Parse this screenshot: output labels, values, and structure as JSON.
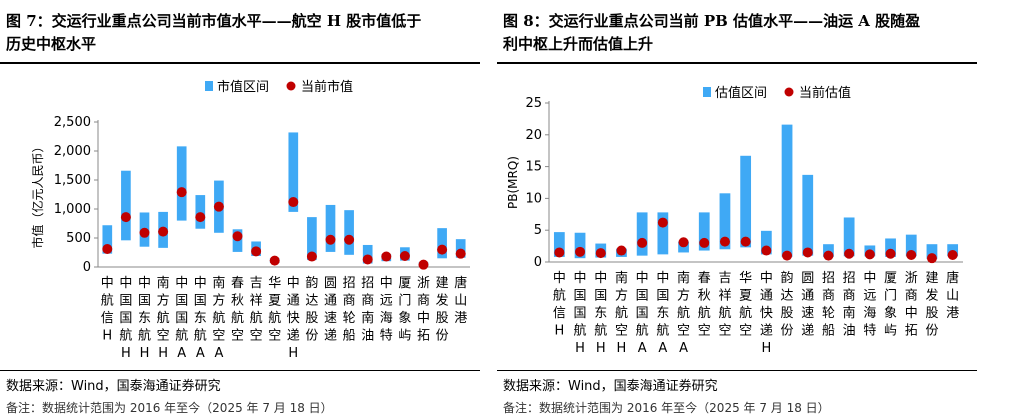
{
  "left": {
    "title_line1": "图 7：交运行业重点公司当前市值水平——航空 H 股市值低于",
    "title_line2": "历史中枢水平",
    "source": "数据来源：Wind，国泰海通证券研究",
    "note": "备注：数据统计范围为 2016 年至今（2025 年 7 月 18 日）"
  },
  "right": {
    "title_line1": "图 8：交运行业重点公司当前 PB 估值水平——油运 A 股随盈",
    "title_line2": "利中枢上升而估值上升",
    "source": "数据来源：Wind，国泰海通证券研究",
    "note": "备注：数据统计范围为 2016 年至今（2025 年 7 月 18 日）"
  },
  "chart_data": [
    {
      "type": "bar",
      "subtype": "range-bar-with-points",
      "ylabel": "市值（亿元人民币）",
      "ylim": [
        0,
        2500
      ],
      "yticks": [
        "0",
        "500",
        "1,000",
        "1,500",
        "2,000",
        "2,500"
      ],
      "ytick_values": [
        0,
        500,
        1000,
        1500,
        2000,
        2500
      ],
      "legend": [
        "市值区间",
        "当前市值"
      ],
      "legend_position": "top-center",
      "colors": {
        "range": "#3fa9f5",
        "point": "#c00000"
      },
      "categories": [
        "中航信H",
        "中国国航H",
        "中国东航H",
        "南方航空H",
        "中国国航A",
        "中国东航A",
        "南方航空A",
        "春秋航空",
        "吉祥航空",
        "华夏航空",
        "中通快递H",
        "韵达股份",
        "圆通速递",
        "招商轮船",
        "招商南油",
        "中远海特",
        "厦门象屿",
        "浙商中拓",
        "建发股份",
        "唐山港"
      ],
      "low": [
        230,
        460,
        350,
        330,
        800,
        660,
        590,
        260,
        190,
        70,
        950,
        120,
        260,
        210,
        60,
        100,
        110,
        20,
        150,
        160
      ],
      "high": [
        720,
        1660,
        940,
        950,
        2080,
        1240,
        1490,
        650,
        440,
        150,
        2320,
        860,
        1070,
        980,
        380,
        220,
        340,
        80,
        670,
        480
      ],
      "current": [
        310,
        860,
        590,
        610,
        1290,
        860,
        1040,
        530,
        270,
        110,
        1120,
        180,
        470,
        470,
        130,
        180,
        190,
        40,
        300,
        230
      ]
    },
    {
      "type": "bar",
      "subtype": "range-bar-with-points",
      "ylabel": "PB(MRQ)",
      "ylim": [
        0,
        25
      ],
      "yticks": [
        "0",
        "5",
        "10",
        "15",
        "20",
        "25"
      ],
      "ytick_values": [
        0,
        5,
        10,
        15,
        20,
        25
      ],
      "legend": [
        "估值区间",
        "当前估值"
      ],
      "legend_position": "top-center",
      "colors": {
        "range": "#3fa9f5",
        "point": "#c00000"
      },
      "categories": [
        "中航信H",
        "中国国航H",
        "中国东航H",
        "南方航空H",
        "中国国航A",
        "中国东航A",
        "南方航空A",
        "春秋航空",
        "吉祥航空",
        "华夏航空",
        "中通快递H",
        "韵达股份",
        "圆通速递",
        "招商轮船",
        "招商南油",
        "中远海特",
        "厦门象屿",
        "浙商中拓",
        "建发股份",
        "唐山港"
      ],
      "low": [
        0.8,
        0.6,
        0.7,
        0.8,
        1.0,
        1.2,
        1.5,
        1.8,
        2.0,
        2.3,
        1.2,
        0.8,
        1.0,
        0.8,
        0.9,
        0.9,
        0.8,
        0.9,
        0.5,
        0.9
      ],
      "high": [
        4.7,
        4.6,
        2.9,
        2.1,
        7.8,
        7.8,
        3.2,
        7.8,
        10.8,
        16.7,
        4.9,
        21.6,
        13.7,
        2.8,
        7.0,
        2.6,
        3.7,
        4.3,
        2.8,
        2.8
      ],
      "current": [
        1.5,
        1.6,
        1.4,
        1.8,
        3.0,
        6.2,
        3.1,
        3.0,
        3.2,
        3.2,
        1.8,
        1.0,
        1.5,
        1.0,
        1.3,
        1.2,
        1.3,
        1.1,
        0.6,
        1.1
      ]
    }
  ]
}
